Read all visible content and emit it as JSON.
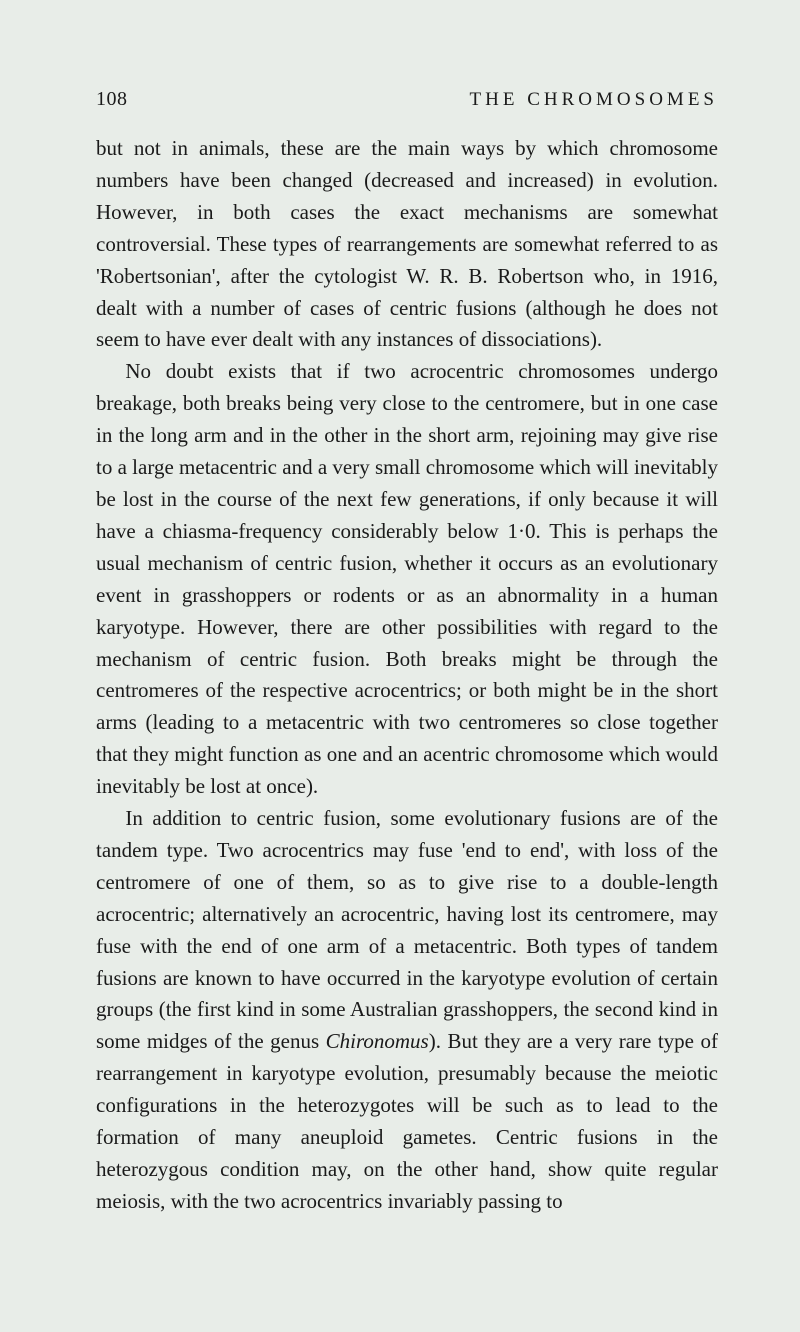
{
  "page": {
    "number": "108",
    "runningTitle": "THE CHROMOSOMES",
    "paragraphs": [
      {
        "indent": false,
        "text": "but not in animals, these are the main ways by which chromosome numbers have been changed (decreased and increased) in evolution. However, in both cases the exact mechanisms are somewhat controversial. These types of rearrangements are somewhat referred to as 'Robertsonian', after the cytologist W. R. B. Robertson who, in 1916, dealt with a number of cases of centric fusions (although he does not seem to have ever dealt with any instances of dissociations)."
      },
      {
        "indent": true,
        "text": "No doubt exists that if two acrocentric chromosomes undergo breakage, both breaks being very close to the centromere, but in one case in the long arm and in the other in the short arm, rejoining may give rise to a large metacentric and a very small chromosome which will inevitably be lost in the course of the next few generations, if only because it will have a chiasma-frequency considerably below 1·0. This is perhaps the usual mechanism of centric fusion, whether it occurs as an evolutionary event in grasshoppers or rodents or as an abnormality in a human karyotype. However, there are other possibilities with regard to the mechanism of centric fusion. Both breaks might be through the centromeres of the respective acrocentrics; or both might be in the short arms (leading to a metacentric with two centromeres so close together that they might function as one and an acentric chromosome which would inevitably be lost at once)."
      },
      {
        "indent": true,
        "text": "In addition to centric fusion, some evolutionary fusions are of the tandem type. Two acrocentrics may fuse 'end to end', with loss of the centromere of one of them, so as to give rise to a double-length acrocentric; alternatively an acrocentric, having lost its centromere, may fuse with the end of one arm of a metacentric. Both types of tandem fusions are known to have occurred in the karyotype evolution of certain groups (the first kind in some Australian grasshoppers, the second kind in some midges of the genus ",
        "italicPart": "Chironomus",
        "textAfter": "). But they are a very rare type of rearrangement in karyotype evolution, presumably because the meiotic configurations in the heterozygotes will be such as to lead to the formation of many aneuploid gametes. Centric fusions in the heterozygous condition may, on the other hand, show quite regular meiosis, with the two acrocentrics invariably passing to"
      }
    ]
  },
  "colors": {
    "background": "#e8ede8",
    "text": "#1a1a1a"
  },
  "typography": {
    "bodyFontSize": 21,
    "headerFontSize": 20,
    "runningTitleFontSize": 19,
    "lineHeight": 1.52,
    "fontFamily": "Times New Roman"
  }
}
